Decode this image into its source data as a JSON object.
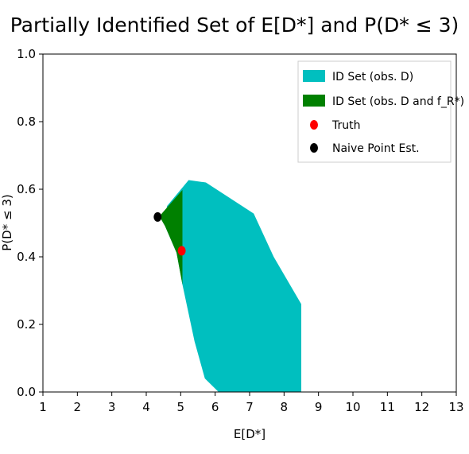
{
  "chart_data": {
    "type": "scatter",
    "title": "Partially Identified Set of E[D*] and P(D* ≤ 3)",
    "xlabel": "E[D*]",
    "ylabel": "P(D* ≤ 3)",
    "xlim": [
      1,
      13
    ],
    "ylim": [
      0.0,
      1.0
    ],
    "xticks": [
      "1",
      "2",
      "3",
      "4",
      "5",
      "6",
      "7",
      "8",
      "9",
      "10",
      "11",
      "12",
      "13"
    ],
    "yticks": [
      "0.0",
      "0.2",
      "0.4",
      "0.6",
      "0.8",
      "1.0"
    ],
    "xtick_values": [
      1,
      2,
      3,
      4,
      5,
      6,
      7,
      8,
      9,
      10,
      11,
      12,
      13
    ],
    "ytick_values": [
      0.0,
      0.2,
      0.4,
      0.6,
      0.8,
      1.0
    ],
    "grid": false,
    "legend_position": "top-right",
    "series": [
      {
        "name": "ID Set (obs. D)",
        "kind": "polygon",
        "color": "#00bfbf",
        "points": [
          [
            5.23,
            0.627
          ],
          [
            5.73,
            0.62
          ],
          [
            7.12,
            0.528
          ],
          [
            7.7,
            0.4
          ],
          [
            8.5,
            0.26
          ],
          [
            8.5,
            0.0
          ],
          [
            6.1,
            0.0
          ],
          [
            5.7,
            0.04
          ],
          [
            5.4,
            0.15
          ],
          [
            5.05,
            0.318
          ],
          [
            4.88,
            0.412
          ],
          [
            4.55,
            0.49
          ],
          [
            4.6,
            0.55
          ]
        ]
      },
      {
        "name": "ID Set (obs. D and f_R*)",
        "kind": "polygon",
        "color": "#008000",
        "points": [
          [
            4.38,
            0.52
          ],
          [
            5.05,
            0.598
          ],
          [
            5.05,
            0.318
          ],
          [
            4.88,
            0.412
          ],
          [
            4.55,
            0.49
          ]
        ]
      },
      {
        "name": "Truth",
        "kind": "point",
        "color": "#ff0000",
        "points": [
          [
            5.03,
            0.418
          ]
        ]
      },
      {
        "name": "Naive Point Est.",
        "kind": "point",
        "color": "#000000",
        "points": [
          [
            4.33,
            0.518
          ]
        ]
      }
    ]
  }
}
